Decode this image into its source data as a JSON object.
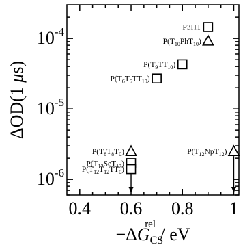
{
  "chart_data": {
    "type": "scatter",
    "title": "",
    "xlabel": {
      "prefix": "−Δ",
      "main": "G",
      "sub": "CS",
      "sup": "rel",
      "suffix": " / eV"
    },
    "ylabel": {
      "prefix": "ΔOD(1 ",
      "mu": "μ",
      "suffix": "s)"
    },
    "xlim": [
      0.35,
      1.02
    ],
    "ylim": [
      6e-07,
      0.0003
    ],
    "yscale": "log",
    "grid": false,
    "x_ticks": [
      0.4,
      0.6,
      0.8,
      1.0
    ],
    "x_tick_labels": [
      "0.4",
      "0.6",
      "0.8",
      "1"
    ],
    "y_ticks": [
      1e-06,
      1e-05,
      0.0001
    ],
    "y_tick_labels": [
      {
        "base": "10",
        "exp": "-6"
      },
      {
        "base": "10",
        "exp": "-5"
      },
      {
        "base": "10",
        "exp": "-4"
      }
    ],
    "points": [
      {
        "x": 0.9,
        "y": 0.000145,
        "marker": "square",
        "label": [
          {
            "t": "P3HT"
          }
        ]
      },
      {
        "x": 0.9,
        "y": 9.2e-05,
        "marker": "triangle",
        "label": [
          {
            "t": "P(T"
          },
          {
            "t": "10",
            "sub": true
          },
          {
            "t": "PhT"
          },
          {
            "t": "10",
            "sub": true
          },
          {
            "t": ")"
          }
        ]
      },
      {
        "x": 0.8,
        "y": 4.3e-05,
        "marker": "square",
        "label": [
          {
            "t": "P(T"
          },
          {
            "t": "9",
            "sub": true
          },
          {
            "t": "TT"
          },
          {
            "t": "10",
            "sub": true
          },
          {
            "t": ")"
          }
        ]
      },
      {
        "x": 0.7,
        "y": 2.7e-05,
        "marker": "square",
        "label": [
          {
            "t": "P(T"
          },
          {
            "t": "6",
            "sub": true
          },
          {
            "t": "T"
          },
          {
            "t": "6",
            "sub": true
          },
          {
            "t": "TT"
          },
          {
            "t": "10",
            "sub": true
          },
          {
            "t": ")"
          }
        ]
      },
      {
        "x": 0.6,
        "y": 2.5e-06,
        "marker": "triangle",
        "label": [
          {
            "t": "P(T"
          },
          {
            "t": "8",
            "sub": true
          },
          {
            "t": "T"
          },
          {
            "t": "8",
            "sub": true
          },
          {
            "t": "T"
          },
          {
            "t": "0",
            "sub": true
          },
          {
            "t": ")"
          }
        ]
      },
      {
        "x": 0.6,
        "y": 1.7e-06,
        "marker": "square",
        "label": [
          {
            "t": "P(T"
          },
          {
            "t": "12",
            "sub": true
          },
          {
            "t": "SeT"
          },
          {
            "t": "12",
            "sub": true
          },
          {
            "t": ")"
          }
        ]
      },
      {
        "x": 0.6,
        "y": 1.4e-06,
        "marker": "square",
        "upper_limit": true,
        "label": [
          {
            "t": "P(T"
          },
          {
            "t": "12",
            "sub": true
          },
          {
            "t": "T"
          },
          {
            "t": "12",
            "sub": true
          },
          {
            "t": "TT"
          },
          {
            "t": "0",
            "sub": true
          },
          {
            "t": ")"
          }
        ]
      },
      {
        "x": 1.0,
        "y": 2.5e-06,
        "marker": "triangle",
        "upper_limit": true,
        "label": [
          {
            "t": "P(T"
          },
          {
            "t": "12",
            "sub": true
          },
          {
            "t": "NpT"
          },
          {
            "t": "12",
            "sub": true
          },
          {
            "t": ")"
          }
        ]
      }
    ],
    "colors": {
      "axis": "#000000",
      "marker_stroke": "#000000",
      "marker_fill": "#ffffff",
      "background": "#ffffff"
    }
  }
}
